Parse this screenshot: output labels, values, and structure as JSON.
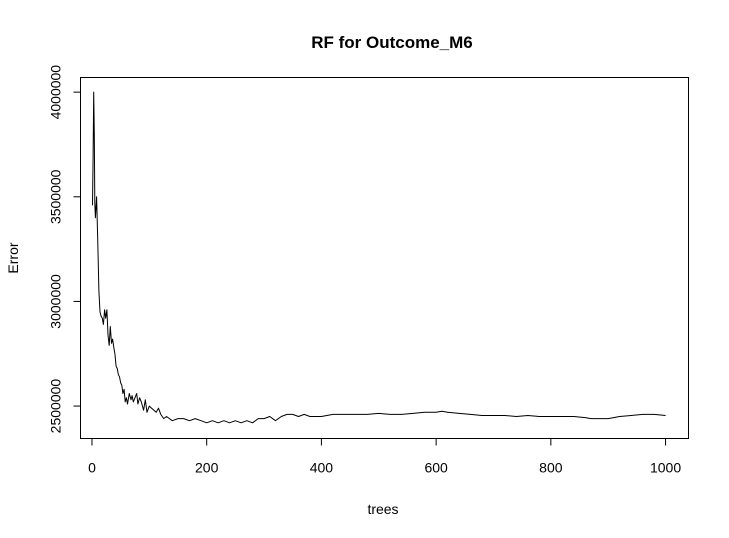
{
  "chart_data": {
    "type": "line",
    "title": "RF for Outcome_M6",
    "xlabel": "trees",
    "ylabel": "Error",
    "xlim": [
      -20,
      1040
    ],
    "ylim": [
      2345000,
      4070000
    ],
    "x_ticks": [
      0,
      200,
      400,
      600,
      800,
      1000
    ],
    "y_ticks": [
      2500000,
      3000000,
      3500000,
      4000000
    ],
    "x_tick_labels": [
      "0",
      "200",
      "400",
      "600",
      "800",
      "1000"
    ],
    "y_tick_labels": [
      "2500000",
      "3000000",
      "3500000",
      "4000000"
    ],
    "grid": false,
    "legend": "none",
    "line_color": "#000000",
    "series": [
      {
        "x": [
          1,
          2,
          3,
          4,
          5,
          6,
          8,
          10,
          12,
          14,
          16,
          18,
          20,
          22,
          24,
          26,
          28,
          30,
          32,
          34,
          36,
          38,
          40,
          42,
          44,
          46,
          48,
          50,
          52,
          54,
          56,
          58,
          60,
          62,
          65,
          68,
          70,
          72,
          75,
          78,
          80,
          83,
          86,
          90,
          93,
          96,
          100,
          104,
          108,
          112,
          116,
          120,
          125,
          130,
          140,
          150,
          160,
          170,
          180,
          190,
          200,
          210,
          220,
          230,
          240,
          250,
          260,
          270,
          280,
          290,
          300,
          310,
          320,
          330,
          340,
          350,
          360,
          370,
          380,
          390,
          400,
          420,
          440,
          460,
          480,
          500,
          520,
          540,
          560,
          580,
          600,
          610,
          620,
          640,
          660,
          680,
          700,
          720,
          740,
          760,
          780,
          800,
          820,
          840,
          860,
          870,
          880,
          890,
          900,
          920,
          940,
          960,
          980,
          1000
        ],
        "y": [
          3460000,
          3690000,
          4000000,
          3800000,
          3470000,
          3400000,
          3500000,
          3300000,
          3050000,
          2950000,
          2930000,
          2920000,
          2890000,
          2960000,
          2920000,
          2960000,
          2840000,
          2790000,
          2880000,
          2800000,
          2820000,
          2780000,
          2750000,
          2690000,
          2680000,
          2650000,
          2640000,
          2610000,
          2600000,
          2560000,
          2580000,
          2520000,
          2540000,
          2510000,
          2560000,
          2530000,
          2550000,
          2520000,
          2540000,
          2560000,
          2510000,
          2540000,
          2520000,
          2480000,
          2530000,
          2470000,
          2500000,
          2490000,
          2480000,
          2470000,
          2490000,
          2460000,
          2440000,
          2450000,
          2430000,
          2440000,
          2440000,
          2430000,
          2440000,
          2430000,
          2420000,
          2430000,
          2420000,
          2430000,
          2420000,
          2430000,
          2420000,
          2430000,
          2420000,
          2440000,
          2440000,
          2450000,
          2430000,
          2450000,
          2460000,
          2460000,
          2450000,
          2460000,
          2450000,
          2450000,
          2450000,
          2460000,
          2460000,
          2460000,
          2460000,
          2465000,
          2460000,
          2460000,
          2465000,
          2470000,
          2470000,
          2475000,
          2470000,
          2465000,
          2460000,
          2455000,
          2455000,
          2455000,
          2450000,
          2455000,
          2450000,
          2450000,
          2450000,
          2450000,
          2445000,
          2440000,
          2440000,
          2440000,
          2440000,
          2450000,
          2455000,
          2460000,
          2460000,
          2455000
        ]
      }
    ]
  }
}
